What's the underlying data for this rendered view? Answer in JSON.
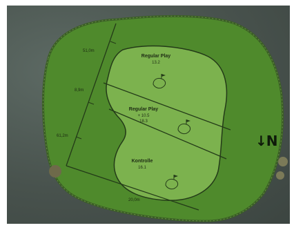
{
  "map": {
    "north_arrow": "↓N",
    "zones": [
      {
        "name": "Regular Play",
        "area": "13.2"
      },
      {
        "name": "Regular Play",
        "extra": "+ 10.5",
        "area": "18.3"
      },
      {
        "name": "Kontrolle",
        "area": "16.1"
      }
    ],
    "dimensions": [
      "51,0m",
      "8,9m",
      "61,2m",
      "20,0m"
    ],
    "colors": {
      "surroundings": "#48524d",
      "fairway": "#4f8a2c",
      "green": "#7cb24e",
      "outline": "#233a18"
    }
  }
}
